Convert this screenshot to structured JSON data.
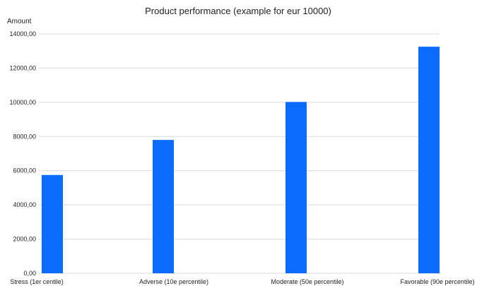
{
  "chart_data": {
    "type": "bar",
    "title": "Product performance (example for eur 10000)",
    "xlabel": "",
    "ylabel": "Amount",
    "categories": [
      "Stress (1er centile)",
      "Adverse (10e percentile)",
      "Moderate (50e percentile)",
      "Favorable (90e percentile)"
    ],
    "values": [
      5750,
      7800,
      10020,
      13250
    ],
    "ylim": [
      0,
      14000
    ],
    "yticks": [
      0,
      2000,
      4000,
      6000,
      8000,
      10000,
      12000,
      14000
    ],
    "ytick_labels": [
      "0,00",
      "2000,00",
      "4000,00",
      "6000,00",
      "8000,00",
      "10000,00",
      "12000,00",
      "14000,00"
    ],
    "grid": true,
    "legend": "none",
    "bar_color": "#0a6cff",
    "grid_color": "#d9d9d9"
  }
}
